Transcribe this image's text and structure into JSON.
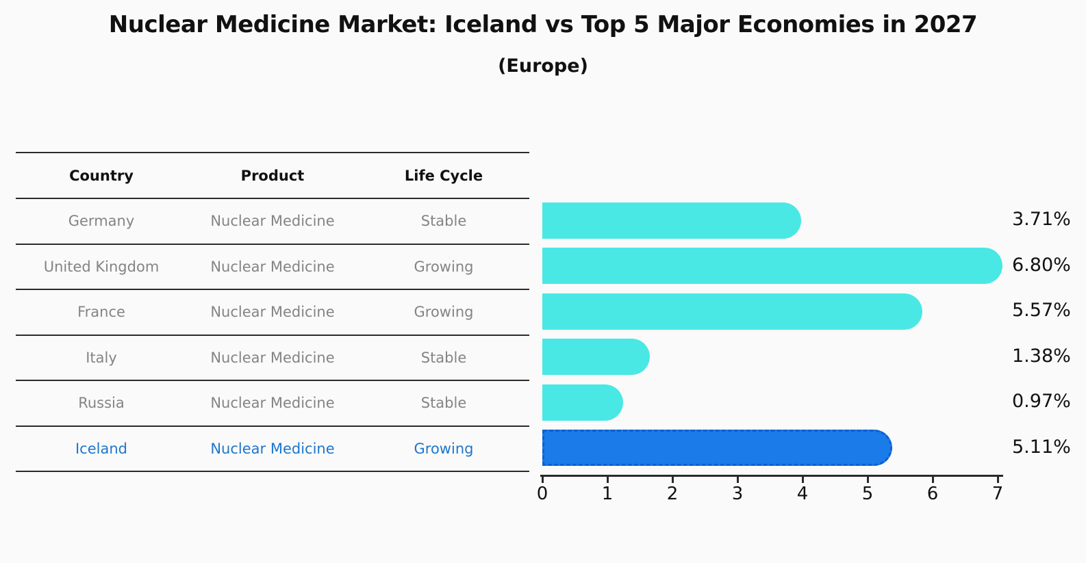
{
  "title": "Nuclear Medicine Market: Iceland vs Top 5 Major Economies in 2027",
  "subtitle": "(Europe)",
  "table": {
    "headers": [
      "Country",
      "Product",
      "Life Cycle"
    ],
    "rows": [
      {
        "country": "Germany",
        "product": "Nuclear Medicine",
        "life_cycle": "Stable"
      },
      {
        "country": "United Kingdom",
        "product": "Nuclear Medicine",
        "life_cycle": "Growing"
      },
      {
        "country": "France",
        "product": "Nuclear Medicine",
        "life_cycle": "Growing"
      },
      {
        "country": "Italy",
        "product": "Nuclear Medicine",
        "life_cycle": "Stable"
      },
      {
        "country": "Russia",
        "product": "Nuclear Medicine",
        "life_cycle": "Stable"
      },
      {
        "country": "Iceland",
        "product": "Nuclear Medicine",
        "life_cycle": "Growing"
      }
    ],
    "highlighted_row": "Iceland"
  },
  "chart_data": {
    "type": "bar",
    "orientation": "horizontal",
    "title": "Nuclear Medicine Market: Iceland vs Top 5 Major Economies in 2027",
    "subtitle": "(Europe)",
    "categories": [
      "Germany",
      "United Kingdom",
      "France",
      "Italy",
      "Russia",
      "Iceland"
    ],
    "values": [
      3.71,
      6.8,
      5.57,
      1.38,
      0.97,
      5.11
    ],
    "value_labels": [
      "3.71%",
      "6.80%",
      "5.57%",
      "1.38%",
      "0.97%",
      "5.11%"
    ],
    "xlim": [
      0,
      7
    ],
    "x_ticks": [
      "0",
      "1",
      "2",
      "3",
      "4",
      "5",
      "6",
      "7"
    ],
    "grid": false,
    "legend": "none",
    "highlight_category": "Iceland",
    "highlight_index": 5
  },
  "colors": {
    "background": "#FAFAFA",
    "bar": "#49E8E4",
    "highlight_bar": "#1B7BE8",
    "highlight_border": "#0C5FD4",
    "highlight_text": "#1E76CC",
    "row_text": "#848484",
    "header_text": "#111111",
    "line": "#2A2A2A"
  }
}
